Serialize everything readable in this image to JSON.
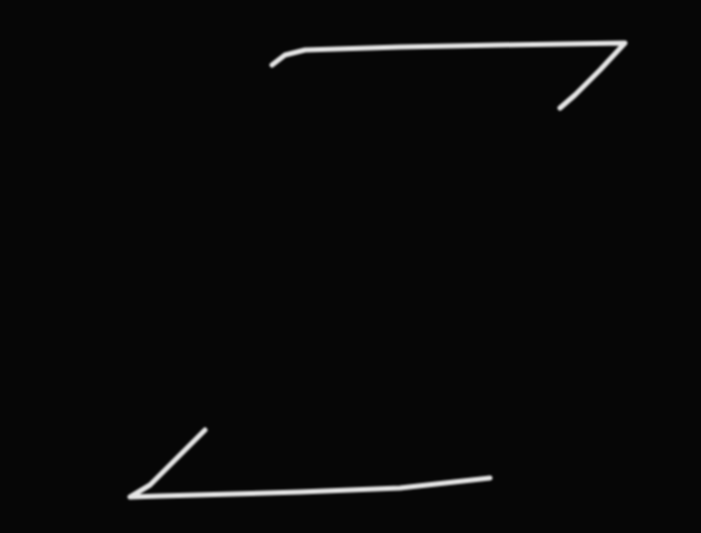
{
  "chart_data": {
    "type": "line",
    "color": "#e6e6e6",
    "x": [
      -1.13,
      -1.0,
      -0.8,
      0.15,
      1.15,
      2.4,
      2.15,
      1.9,
      1.75,
      null,
      -1.8,
      -2.05,
      -2.35,
      -2.55,
      -2.25,
      -0.85,
      0.15,
      1.05
    ],
    "values": [
      2.05,
      2.15,
      2.2,
      2.23,
      2.25,
      2.27,
      2.0,
      1.75,
      1.62,
      null,
      -1.6,
      -1.85,
      -2.15,
      -2.27,
      -2.26,
      -2.22,
      -2.18,
      -2.08
    ],
    "xlim": [
      -2.6,
      2.45
    ],
    "ylim": [
      -2.5,
      2.4
    ],
    "xticks": [],
    "yticks": [],
    "grid": false,
    "tick_labels": false
  }
}
